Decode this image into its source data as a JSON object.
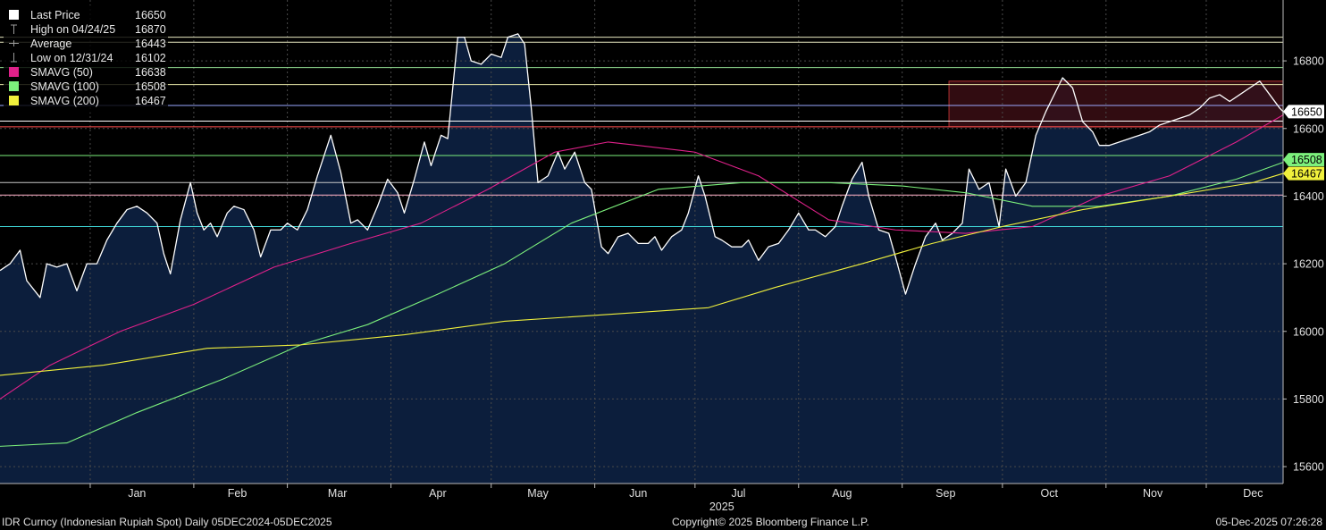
{
  "legend": [
    {
      "label": "Last Price",
      "value": "16650",
      "symbol": "square",
      "color": "#ffffff"
    },
    {
      "label": "High on 04/24/25",
      "value": "16870",
      "symbol": "high-marker",
      "color": "#9a9a9a"
    },
    {
      "label": "Average",
      "value": "16443",
      "symbol": "average-marker",
      "color": "#9a9a9a"
    },
    {
      "label": "Low on 12/31/24",
      "value": "16102",
      "symbol": "low-marker",
      "color": "#9a9a9a"
    },
    {
      "label": "SMAVG (50)",
      "value": "16638",
      "symbol": "square",
      "color": "#e0218a"
    },
    {
      "label": "SMAVG (100)",
      "value": "16508",
      "symbol": "square",
      "color": "#7cf07c"
    },
    {
      "label": "SMAVG (200)",
      "value": "16467",
      "symbol": "square",
      "color": "#f0f03c"
    }
  ],
  "footer": {
    "left": "IDR Curncy (Indonesian Rupiah Spot) Daily 05DEC2024-05DEC2025",
    "center": "Copyright© 2025 Bloomberg Finance L.P.",
    "right": "05-Dec-2025 07:26:28"
  },
  "colors": {
    "background": "#000000",
    "area_fill": "#0c1e3c",
    "price_line": "#ffffff",
    "sma50": "#e0218a",
    "sma100": "#7cf07c",
    "sma200": "#f0f03c",
    "grid": "#4a4a4a",
    "box": "#3a0e14",
    "box_border": "#b03030"
  },
  "chart_data": {
    "type": "line",
    "title": "",
    "xlabel": "",
    "ylabel": "",
    "ylim": [
      15550,
      16980
    ],
    "yticks": [
      15600,
      15800,
      16000,
      16200,
      16400,
      16600,
      16800
    ],
    "x_range": [
      "2024-12-05",
      "2025-12-24"
    ],
    "months": [
      {
        "label": "Jan",
        "date": "2025-01-15"
      },
      {
        "label": "Feb",
        "date": "2025-02-14"
      },
      {
        "label": "Mar",
        "date": "2025-03-16"
      },
      {
        "label": "Apr",
        "date": "2025-04-15"
      },
      {
        "label": "May",
        "date": "2025-05-15"
      },
      {
        "label": "Jun",
        "date": "2025-06-14"
      },
      {
        "label": "Jul",
        "date": "2025-07-14"
      },
      {
        "label": "Aug",
        "date": "2025-08-14"
      },
      {
        "label": "Sep",
        "date": "2025-09-14"
      },
      {
        "label": "Oct",
        "date": "2025-10-15"
      },
      {
        "label": "Nov",
        "date": "2025-11-15"
      },
      {
        "label": "Dec",
        "date": "2025-12-15"
      }
    ],
    "year_label": {
      "label": "2025",
      "date": "2025-07-09"
    },
    "horizontal_lines": [
      {
        "value": 16870,
        "color": "#e8e8c0"
      },
      {
        "value": 16855,
        "color": "#e8e8c0"
      },
      {
        "value": 16780,
        "color": "#8fd88f"
      },
      {
        "value": 16730,
        "color": "#e8e8a8"
      },
      {
        "value": 16668,
        "color": "#9aa8ff"
      },
      {
        "value": 16622,
        "color": "#ffffff"
      },
      {
        "value": 16605,
        "color": "#ff5050"
      },
      {
        "value": 16520,
        "color": "#7cf07c"
      },
      {
        "value": 16440,
        "color": "#c8c8c8"
      },
      {
        "value": 16403,
        "color": "#ffb0c8"
      },
      {
        "value": 16310,
        "color": "#40d8d8"
      }
    ],
    "highlight_box": {
      "x_start": "2025-09-15",
      "x_end": "2025-12-24",
      "y_low": 16605,
      "y_high": 16740
    },
    "axis_tags": [
      {
        "text": "16650",
        "value": 16650,
        "bg": "#ffffff",
        "fg": "#000000"
      },
      {
        "text": "16508",
        "value": 16508,
        "bg": "#7cf07c",
        "fg": "#000000"
      },
      {
        "text": "16467",
        "value": 16467,
        "bg": "#f0f03c",
        "fg": "#000000"
      }
    ],
    "series": [
      {
        "name": "Last Price",
        "color": "#ffffff",
        "fill": true,
        "points": [
          [
            "2024-12-05",
            16180
          ],
          [
            "2024-12-08",
            16200
          ],
          [
            "2024-12-11",
            16240
          ],
          [
            "2024-12-13",
            16150
          ],
          [
            "2024-12-17",
            16100
          ],
          [
            "2024-12-19",
            16200
          ],
          [
            "2024-12-22",
            16190
          ],
          [
            "2024-12-25",
            16200
          ],
          [
            "2024-12-28",
            16120
          ],
          [
            "2024-12-31",
            16200
          ],
          [
            "2025-01-03",
            16200
          ],
          [
            "2025-01-06",
            16270
          ],
          [
            "2025-01-09",
            16320
          ],
          [
            "2025-01-12",
            16360
          ],
          [
            "2025-01-15",
            16370
          ],
          [
            "2025-01-18",
            16350
          ],
          [
            "2025-01-21",
            16320
          ],
          [
            "2025-01-23",
            16230
          ],
          [
            "2025-01-25",
            16170
          ],
          [
            "2025-01-28",
            16330
          ],
          [
            "2025-01-31",
            16440
          ],
          [
            "2025-02-02",
            16350
          ],
          [
            "2025-02-04",
            16300
          ],
          [
            "2025-02-06",
            16320
          ],
          [
            "2025-02-08",
            16280
          ],
          [
            "2025-02-11",
            16350
          ],
          [
            "2025-02-13",
            16370
          ],
          [
            "2025-02-16",
            16360
          ],
          [
            "2025-02-19",
            16300
          ],
          [
            "2025-02-21",
            16220
          ],
          [
            "2025-02-24",
            16300
          ],
          [
            "2025-02-27",
            16300
          ],
          [
            "2025-03-01",
            16320
          ],
          [
            "2025-03-04",
            16300
          ],
          [
            "2025-03-07",
            16360
          ],
          [
            "2025-03-10",
            16460
          ],
          [
            "2025-03-14",
            16580
          ],
          [
            "2025-03-17",
            16470
          ],
          [
            "2025-03-20",
            16320
          ],
          [
            "2025-03-22",
            16330
          ],
          [
            "2025-03-25",
            16300
          ],
          [
            "2025-03-28",
            16370
          ],
          [
            "2025-03-31",
            16450
          ],
          [
            "2025-04-03",
            16410
          ],
          [
            "2025-04-05",
            16350
          ],
          [
            "2025-04-08",
            16450
          ],
          [
            "2025-04-11",
            16560
          ],
          [
            "2025-04-13",
            16490
          ],
          [
            "2025-04-16",
            16580
          ],
          [
            "2025-04-18",
            16570
          ],
          [
            "2025-04-21",
            16870
          ],
          [
            "2025-04-23",
            16870
          ],
          [
            "2025-04-25",
            16800
          ],
          [
            "2025-04-28",
            16790
          ],
          [
            "2025-05-01",
            16820
          ],
          [
            "2025-05-04",
            16810
          ],
          [
            "2025-05-06",
            16870
          ],
          [
            "2025-05-09",
            16880
          ],
          [
            "2025-05-11",
            16850
          ],
          [
            "2025-05-13",
            16660
          ],
          [
            "2025-05-15",
            16440
          ],
          [
            "2025-05-18",
            16460
          ],
          [
            "2025-05-21",
            16530
          ],
          [
            "2025-05-23",
            16480
          ],
          [
            "2025-05-26",
            16530
          ],
          [
            "2025-05-29",
            16440
          ],
          [
            "2025-05-31",
            16420
          ],
          [
            "2025-06-03",
            16250
          ],
          [
            "2025-06-05",
            16230
          ],
          [
            "2025-06-08",
            16280
          ],
          [
            "2025-06-11",
            16290
          ],
          [
            "2025-06-14",
            16260
          ],
          [
            "2025-06-17",
            16260
          ],
          [
            "2025-06-19",
            16280
          ],
          [
            "2025-06-21",
            16240
          ],
          [
            "2025-06-24",
            16280
          ],
          [
            "2025-06-27",
            16300
          ],
          [
            "2025-06-29",
            16350
          ],
          [
            "2025-07-02",
            16460
          ],
          [
            "2025-07-04",
            16400
          ],
          [
            "2025-07-07",
            16280
          ],
          [
            "2025-07-09",
            16270
          ],
          [
            "2025-07-12",
            16250
          ],
          [
            "2025-07-15",
            16250
          ],
          [
            "2025-07-17",
            16270
          ],
          [
            "2025-07-20",
            16210
          ],
          [
            "2025-07-23",
            16250
          ],
          [
            "2025-07-26",
            16260
          ],
          [
            "2025-07-29",
            16300
          ],
          [
            "2025-08-01",
            16350
          ],
          [
            "2025-08-04",
            16300
          ],
          [
            "2025-08-06",
            16300
          ],
          [
            "2025-08-09",
            16280
          ],
          [
            "2025-08-12",
            16310
          ],
          [
            "2025-08-14",
            16370
          ],
          [
            "2025-08-17",
            16450
          ],
          [
            "2025-08-20",
            16500
          ],
          [
            "2025-08-22",
            16400
          ],
          [
            "2025-08-25",
            16300
          ],
          [
            "2025-08-28",
            16290
          ],
          [
            "2025-08-30",
            16220
          ],
          [
            "2025-09-02",
            16110
          ],
          [
            "2025-09-05",
            16200
          ],
          [
            "2025-09-08",
            16280
          ],
          [
            "2025-09-11",
            16320
          ],
          [
            "2025-09-13",
            16270
          ],
          [
            "2025-09-16",
            16290
          ],
          [
            "2025-09-19",
            16320
          ],
          [
            "2025-09-21",
            16480
          ],
          [
            "2025-09-24",
            16420
          ],
          [
            "2025-09-27",
            16440
          ],
          [
            "2025-09-30",
            16310
          ],
          [
            "2025-10-02",
            16480
          ],
          [
            "2025-10-05",
            16400
          ],
          [
            "2025-10-08",
            16440
          ],
          [
            "2025-10-11",
            16580
          ],
          [
            "2025-10-14",
            16650
          ],
          [
            "2025-10-17",
            16710
          ],
          [
            "2025-10-19",
            16750
          ],
          [
            "2025-10-22",
            16720
          ],
          [
            "2025-10-25",
            16620
          ],
          [
            "2025-10-28",
            16590
          ],
          [
            "2025-10-30",
            16550
          ],
          [
            "2025-11-02",
            16550
          ],
          [
            "2025-11-05",
            16560
          ],
          [
            "2025-11-08",
            16570
          ],
          [
            "2025-11-11",
            16580
          ],
          [
            "2025-11-14",
            16590
          ],
          [
            "2025-11-17",
            16610
          ],
          [
            "2025-11-20",
            16620
          ],
          [
            "2025-11-23",
            16630
          ],
          [
            "2025-11-26",
            16640
          ],
          [
            "2025-11-29",
            16660
          ],
          [
            "2025-12-02",
            16690
          ],
          [
            "2025-12-05",
            16700
          ],
          [
            "2025-12-08",
            16680
          ],
          [
            "2025-12-11",
            16700
          ],
          [
            "2025-12-14",
            16720
          ],
          [
            "2025-12-17",
            16740
          ],
          [
            "2025-12-20",
            16700
          ],
          [
            "2025-12-23",
            16660
          ],
          [
            "2025-12-26",
            16650
          ],
          [
            "2025-12-29",
            16640
          ],
          [
            "2026-01-01",
            16650
          ]
        ]
      },
      {
        "name": "SMAVG (50)",
        "color": "#e0218a",
        "points": [
          [
            "2024-12-05",
            15800
          ],
          [
            "2024-12-20",
            15900
          ],
          [
            "2025-01-10",
            16000
          ],
          [
            "2025-02-01",
            16080
          ],
          [
            "2025-02-25",
            16190
          ],
          [
            "2025-03-20",
            16260
          ],
          [
            "2025-04-10",
            16320
          ],
          [
            "2025-04-30",
            16420
          ],
          [
            "2025-05-20",
            16530
          ],
          [
            "2025-06-05",
            16560
          ],
          [
            "2025-06-14",
            16550
          ],
          [
            "2025-07-01",
            16530
          ],
          [
            "2025-07-20",
            16460
          ],
          [
            "2025-08-10",
            16330
          ],
          [
            "2025-08-30",
            16300
          ],
          [
            "2025-09-20",
            16290
          ],
          [
            "2025-10-10",
            16310
          ],
          [
            "2025-10-30",
            16400
          ],
          [
            "2025-11-20",
            16460
          ],
          [
            "2025-12-10",
            16560
          ],
          [
            "2025-12-28",
            16640
          ],
          [
            "2026-01-01",
            16638
          ]
        ]
      },
      {
        "name": "SMAVG (100)",
        "color": "#7cf07c",
        "points": [
          [
            "2024-12-05",
            15660
          ],
          [
            "2024-12-25",
            15670
          ],
          [
            "2025-01-15",
            15760
          ],
          [
            "2025-02-10",
            15860
          ],
          [
            "2025-03-05",
            15960
          ],
          [
            "2025-03-25",
            16020
          ],
          [
            "2025-04-15",
            16110
          ],
          [
            "2025-05-05",
            16200
          ],
          [
            "2025-05-25",
            16320
          ],
          [
            "2025-06-20",
            16420
          ],
          [
            "2025-07-15",
            16440
          ],
          [
            "2025-08-10",
            16440
          ],
          [
            "2025-09-01",
            16430
          ],
          [
            "2025-09-20",
            16410
          ],
          [
            "2025-10-10",
            16370
          ],
          [
            "2025-10-30",
            16370
          ],
          [
            "2025-11-20",
            16400
          ],
          [
            "2025-12-10",
            16450
          ],
          [
            "2025-12-28",
            16500
          ],
          [
            "2026-01-01",
            16508
          ]
        ]
      },
      {
        "name": "SMAVG (200)",
        "color": "#f0f03c",
        "points": [
          [
            "2024-12-05",
            15870
          ],
          [
            "2025-01-05",
            15900
          ],
          [
            "2025-02-05",
            15950
          ],
          [
            "2025-03-05",
            15960
          ],
          [
            "2025-04-05",
            15990
          ],
          [
            "2025-05-05",
            16030
          ],
          [
            "2025-06-05",
            16050
          ],
          [
            "2025-07-05",
            16070
          ],
          [
            "2025-07-25",
            16130
          ],
          [
            "2025-08-20",
            16200
          ],
          [
            "2025-09-10",
            16260
          ],
          [
            "2025-10-01",
            16310
          ],
          [
            "2025-10-25",
            16360
          ],
          [
            "2025-11-20",
            16400
          ],
          [
            "2025-12-15",
            16440
          ],
          [
            "2026-01-01",
            16467
          ]
        ]
      }
    ]
  }
}
